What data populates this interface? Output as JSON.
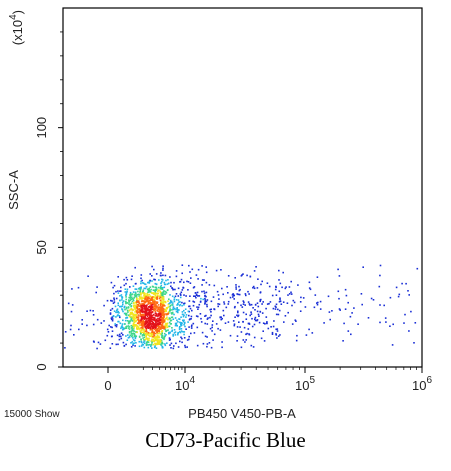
{
  "chart_data": {
    "type": "scatter",
    "title": "",
    "xlabel": "PB450 V450-PB-A",
    "ylabel": "SSC-A",
    "y_multiplier": "(x10^4)",
    "x_scale": "biexponential",
    "y_scale": "linear",
    "xlim": [
      -500,
      1000000
    ],
    "ylim": [
      0,
      150
    ],
    "x_ticks": [
      {
        "value": 0,
        "label": "0"
      },
      {
        "value": 10000,
        "label": "10^4"
      },
      {
        "value": 100000,
        "label": "10^5"
      },
      {
        "value": 1000000,
        "label": "10^6"
      }
    ],
    "y_ticks": [
      {
        "value": 0,
        "label": "0"
      },
      {
        "value": 50,
        "label": "50"
      },
      {
        "value": 100,
        "label": "100"
      }
    ],
    "event_count_label": "15000 Show",
    "caption": "CD73-Pacific Blue",
    "colormap": [
      "#1a2fd6",
      "#23b6e8",
      "#3dd68a",
      "#f2e51f",
      "#ff6a13",
      "#e3121b"
    ],
    "populations": [
      {
        "name": "dense",
        "x_center": 2200,
        "x_spread": 1300,
        "y_center": 22,
        "y_spread": 7,
        "count": 1400
      },
      {
        "name": "tail",
        "x_min": 4000,
        "x_max": 60000,
        "y_center": 24,
        "y_spread": 8,
        "count": 650
      },
      {
        "name": "sparse",
        "x_min": 60000,
        "x_max": 900000,
        "y_center": 27,
        "y_spread": 9,
        "count": 110
      }
    ]
  }
}
